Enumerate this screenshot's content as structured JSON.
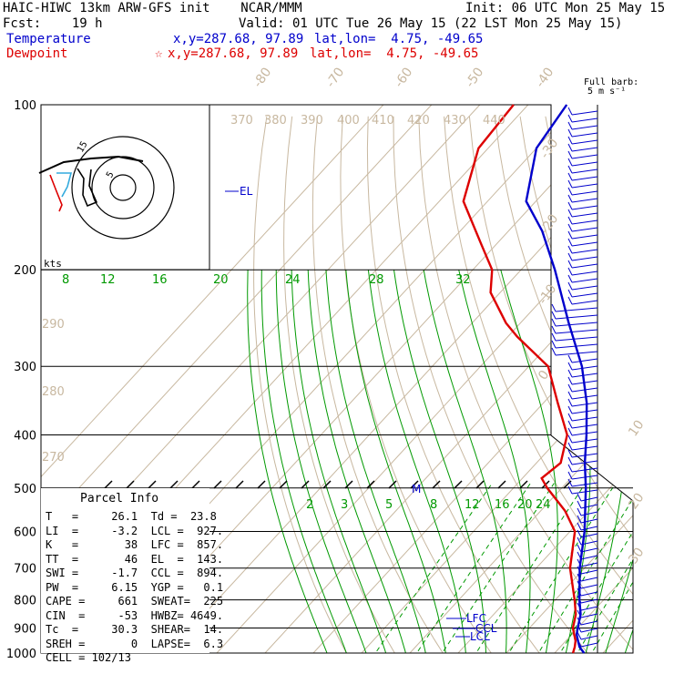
{
  "header": {
    "model": "HAIC-HIWC 13km ARW-GFS init    NCAR/MMM",
    "init": "Init: 06 UTC Mon 25 May 15",
    "fcst": "Fcst:    19 h",
    "valid": "Valid: 01 UTC Tue 26 May 15 (22 LST Mon 25 May 15)",
    "temp_label": "Temperature",
    "temp_xy": "x,y=287.68, 97.89",
    "temp_latlon": "lat,lon=  4.75, -49.65",
    "dew_label": "Dewpoint",
    "dew_marker": "☆",
    "dew_xy": "x,y=287.68, 97.89",
    "dew_latlon": "lat,lon=  4.75, -49.65"
  },
  "barb_key": {
    "line1": "Full barb:",
    "line2": "5 m s⁻¹"
  },
  "pressure_labels": [
    "100",
    "200",
    "300",
    "400",
    "500",
    "600",
    "700",
    "800",
    "900",
    "1000"
  ],
  "temp_labels": [
    "-80",
    "-70",
    "-60",
    "-50",
    "-40",
    "-30",
    "-20",
    "-10",
    "0",
    "10",
    "20",
    "30",
    "40"
  ],
  "theta_labels": [
    "370",
    "380",
    "390",
    "400",
    "410",
    "420",
    "430",
    "440",
    "290",
    "280",
    "270"
  ],
  "mixing_labels": [
    "8",
    "12",
    "16",
    "20",
    "24",
    "28",
    "32",
    "2",
    "3",
    "5",
    "8",
    "12",
    "16",
    "20",
    "24"
  ],
  "hodograph": {
    "units": "kts",
    "rings": [
      "5",
      "15"
    ]
  },
  "parcel": {
    "title": "Parcel Info",
    "rows": [
      "T   =     26.1  Td =  23.8",
      "LI  =     -3.2  LCL =  927.",
      "K   =       38  LFC =  857.",
      "TT  =       46  EL  =  143.",
      "SWI =     -1.7  CCL =  894.",
      "PW  =     6.15  YGP =   0.1",
      "CAPE =     661  SWEAT=  225",
      "CIN  =     -53  HWBZ= 4649.",
      "Tc  =     30.3  SHEAR=  14.",
      "SREH =       0  LAPSE=  6.3",
      "CELL = 102/13"
    ]
  },
  "level_labels": {
    "el": "EL",
    "lfc": "LFC",
    "ccl": "CCL",
    "lcl": "LCL",
    "m": "M"
  },
  "colors": {
    "temperature": "#0000cc",
    "dewpoint": "#dd0000",
    "isotherm": "#c8b8a0",
    "mixing_ratio": "#009900",
    "isobar": "#000000"
  },
  "chart_data": {
    "type": "line",
    "chart_kind": "skew-T log-P sounding",
    "y_axis": "pressure (hPa), log scale",
    "ylim": [
      1000,
      100
    ],
    "series": [
      {
        "name": "Temperature",
        "points": [
          [
            1000,
            26.1
          ],
          [
            975,
            24
          ],
          [
            950,
            22.5
          ],
          [
            925,
            21
          ],
          [
            900,
            20
          ],
          [
            850,
            18
          ],
          [
            800,
            15
          ],
          [
            700,
            9
          ],
          [
            600,
            3
          ],
          [
            500,
            -5
          ],
          [
            450,
            -10
          ],
          [
            400,
            -15
          ],
          [
            350,
            -21
          ],
          [
            300,
            -29
          ],
          [
            250,
            -40
          ],
          [
            200,
            -53
          ],
          [
            170,
            -63
          ],
          [
            150,
            -72
          ],
          [
            120,
            -80
          ],
          [
            100,
            -82
          ]
        ]
      },
      {
        "name": "Dewpoint",
        "points": [
          [
            1000,
            23.8
          ],
          [
            975,
            23
          ],
          [
            950,
            22
          ],
          [
            900,
            19
          ],
          [
            850,
            17
          ],
          [
            800,
            14
          ],
          [
            700,
            7
          ],
          [
            600,
            1
          ],
          [
            550,
            -5
          ],
          [
            500,
            -13
          ],
          [
            480,
            -16
          ],
          [
            450,
            -15
          ],
          [
            400,
            -19
          ],
          [
            350,
            -27
          ],
          [
            300,
            -36
          ],
          [
            265,
            -48
          ],
          [
            250,
            -53
          ],
          [
            220,
            -62
          ],
          [
            200,
            -66
          ],
          [
            180,
            -73
          ],
          [
            150,
            -85
          ],
          [
            120,
            -92
          ],
          [
            100,
            -93
          ]
        ]
      }
    ]
  }
}
